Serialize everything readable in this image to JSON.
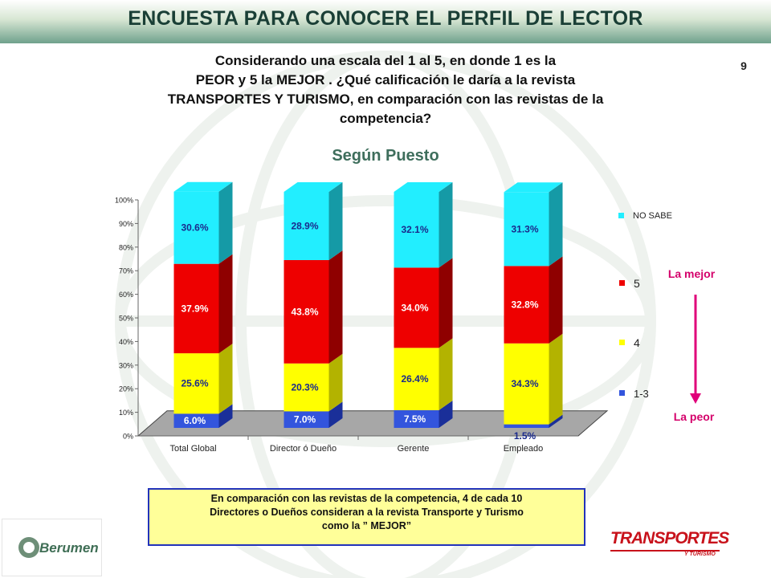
{
  "banner": {
    "title": "ENCUESTA PARA CONOCER EL PERFIL DE LECTOR"
  },
  "page_number": "9",
  "question": {
    "line1": "Considerando una escala del 1 al 5, en donde 1 es la",
    "line2": "PEOR y  5 la MEJOR . ¿Qué calificación le daría a la revista",
    "line3": "TRANSPORTES Y TURISMO, en comparación con las revistas de la",
    "line4": "competencia?"
  },
  "side_labels": {
    "best": "La mejor",
    "worst": "La peor"
  },
  "note": {
    "line1": "En comparación con las revistas de la competencia, 4 de cada 10",
    "line2": "Directores o Dueños  consideran a la revista Transporte y Turismo",
    "line3": "como la ” MEJOR”"
  },
  "logos": {
    "left": "Berumen",
    "right": "TRANSPORTES",
    "right_sub": "Y TURISMO"
  },
  "colors": {
    "banner_text": "#1a3f36",
    "title": "#3e6e5c",
    "arrow": "#e0007a",
    "side_label": "#d4006a"
  },
  "chart_data": {
    "type": "bar",
    "stacked": true,
    "percent": true,
    "title": "Según Puesto",
    "categories": [
      "Total Global",
      "Director ó Dueño",
      "Gerente",
      "Empleado"
    ],
    "series": [
      {
        "name": "1-3",
        "values": [
          6.0,
          7.0,
          7.5,
          1.5
        ],
        "labels": [
          "6.0%",
          "7.0%",
          "7.5%",
          "1.5%"
        ],
        "color": "#3355dd",
        "side": "#1a2f99"
      },
      {
        "name": "4",
        "values": [
          25.6,
          20.3,
          26.4,
          34.3
        ],
        "labels": [
          "25.6%",
          "20.3%",
          "26.4%",
          "34.3%"
        ],
        "color": "#ffff00",
        "side": "#b3b300"
      },
      {
        "name": "5",
        "values": [
          37.9,
          43.8,
          34.0,
          32.8
        ],
        "labels": [
          "37.9%",
          "43.8%",
          "34.0%",
          "32.8%"
        ],
        "color": "#ee0000",
        "side": "#8f0000"
      },
      {
        "name": "NO SABE",
        "values": [
          30.6,
          28.9,
          32.1,
          31.3
        ],
        "labels": [
          "30.6%",
          "28.9%",
          "32.1%",
          "31.3%"
        ],
        "color": "#22eeff",
        "side": "#159aa6"
      }
    ],
    "legend_order": [
      "NO SABE",
      "5",
      "4",
      "1-3"
    ],
    "ylim": [
      0,
      100
    ],
    "yticks": [
      "0%",
      "10%",
      "20%",
      "30%",
      "40%",
      "50%",
      "60%",
      "70%",
      "80%",
      "90%",
      "100%"
    ],
    "xlabel": "",
    "ylabel": "",
    "legend_position": "right"
  }
}
